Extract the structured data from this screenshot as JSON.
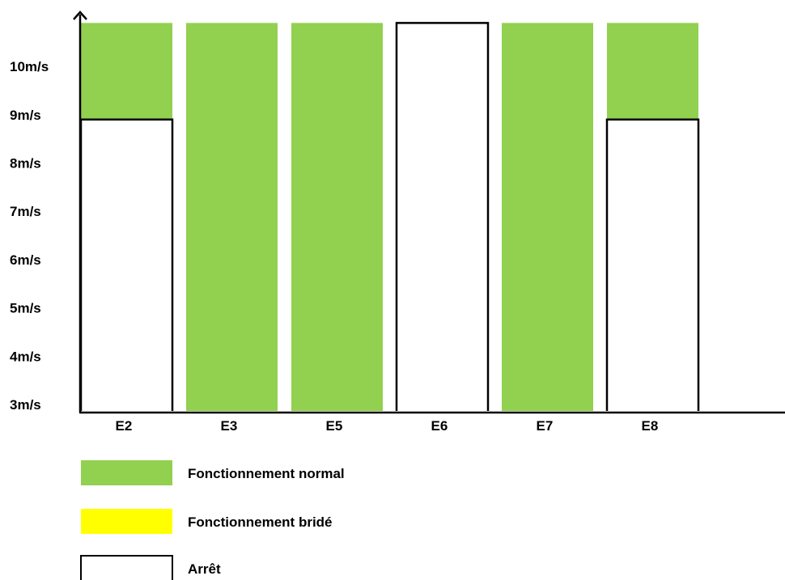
{
  "chart_data": {
    "type": "bar",
    "title": "",
    "xlabel": "",
    "ylabel": "",
    "categories": [
      "E2",
      "E3",
      "E5",
      "E6",
      "E7",
      "E8"
    ],
    "yticks": [
      "3m/s",
      "4m/s",
      "5m/s",
      "6m/s",
      "7m/s",
      "8m/s",
      "9m/s",
      "10m/s"
    ],
    "ylim": [
      3,
      11
    ],
    "segments": [
      [
        {
          "state": "arret",
          "from": 3,
          "to": 8.9
        },
        {
          "state": "normal",
          "from": 8.9,
          "to": 10.9
        }
      ],
      [
        {
          "state": "normal",
          "from": 3,
          "to": 10.9
        }
      ],
      [
        {
          "state": "normal",
          "from": 3,
          "to": 10.9
        }
      ],
      [
        {
          "state": "arret",
          "from": 3,
          "to": 10.9
        }
      ],
      [
        {
          "state": "normal",
          "from": 3,
          "to": 10.9
        }
      ],
      [
        {
          "state": "arret",
          "from": 3,
          "to": 8.9
        },
        {
          "state": "normal",
          "from": 8.9,
          "to": 10.9
        }
      ]
    ],
    "legend": [
      {
        "key": "normal",
        "label": "Fonctionnement normal",
        "color": "#92d050"
      },
      {
        "key": "bride",
        "label": "Fonctionnement bridé",
        "color": "#ffff00"
      },
      {
        "key": "arret",
        "label": "Arrêt",
        "color": "#ffffff"
      }
    ],
    "legend_position": "bottom-left",
    "grid": false
  }
}
